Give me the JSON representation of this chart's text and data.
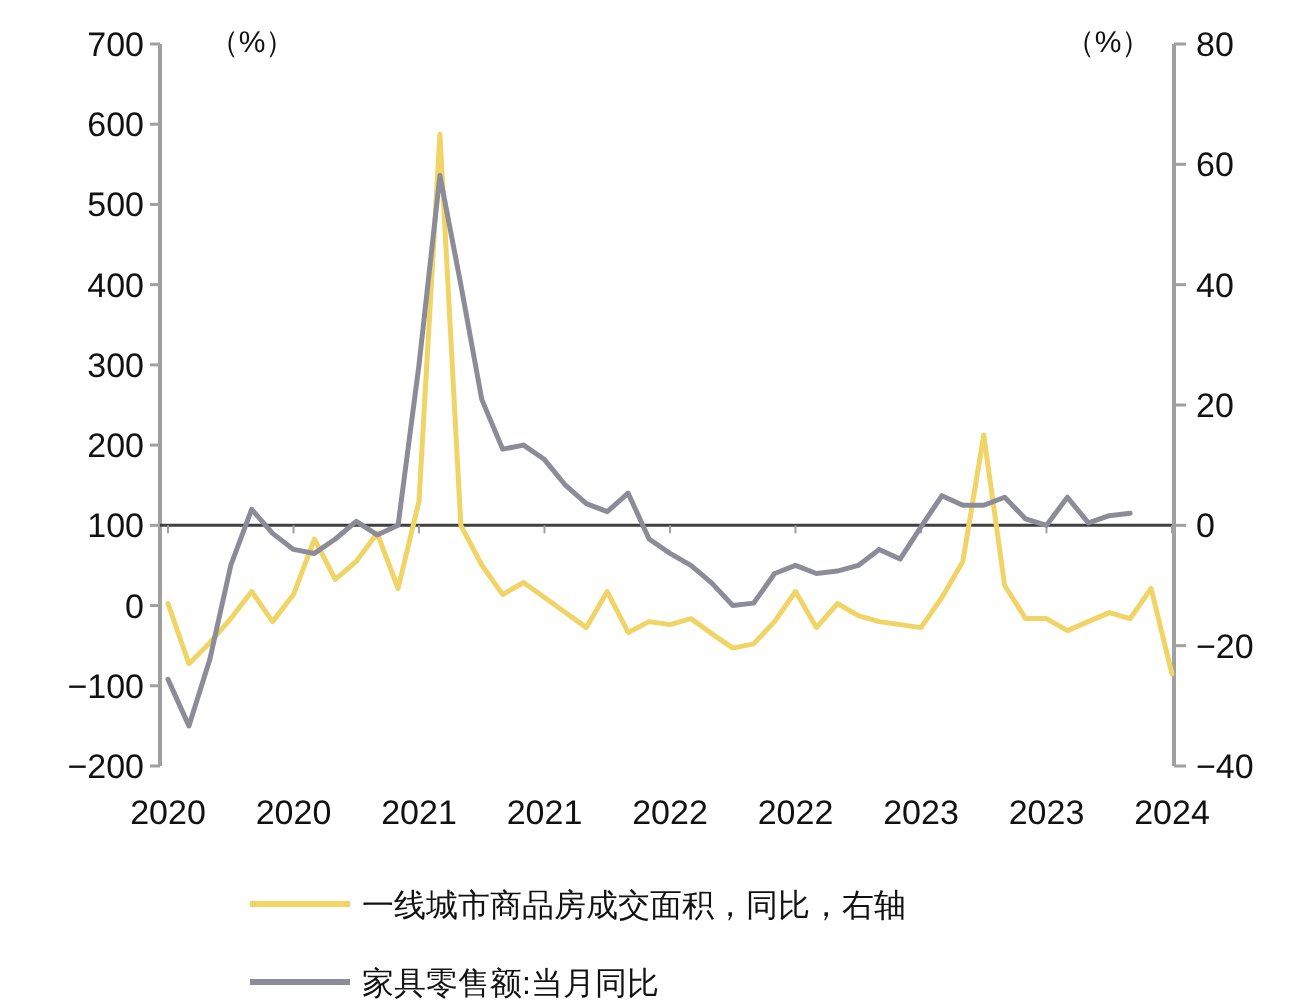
{
  "chart_data": {
    "type": "line",
    "ylabel": "（%）",
    "y2label": "（%）",
    "categories": [
      "2020",
      null,
      null,
      null,
      null,
      null,
      "2020",
      null,
      null,
      null,
      null,
      null,
      "2021",
      null,
      null,
      null,
      null,
      null,
      "2021",
      null,
      null,
      null,
      null,
      null,
      "2022",
      null,
      null,
      null,
      null,
      null,
      "2022",
      null,
      null,
      null,
      null,
      null,
      "2023",
      null,
      null,
      null,
      null,
      null,
      "2023",
      null,
      null,
      null,
      null,
      null,
      "2024"
    ],
    "ylim": [
      -200,
      700
    ],
    "yticks": [
      -200,
      -100,
      0,
      100,
      200,
      300,
      400,
      500,
      600,
      700
    ],
    "y2lim": [
      -40,
      80
    ],
    "y2ticks": [
      -40,
      -20,
      0,
      20,
      40,
      60,
      80
    ],
    "series": [
      {
        "name": "一线城市商品房成交面积，同比，右轴",
        "color": "#f0d466",
        "axis": "y2",
        "values": [
          -13,
          -23,
          -19.5,
          -15.5,
          -11,
          -16,
          -11.5,
          -2.3,
          -9,
          -6,
          -1.3,
          -10.5,
          4,
          65,
          0,
          -6.6,
          -11.5,
          -9.5,
          -12,
          -14.5,
          -17,
          -11,
          -17.8,
          -16,
          -16.5,
          -15.5,
          -18,
          -20.4,
          -19.7,
          -16,
          -11,
          -17,
          -13,
          -15,
          -16,
          -16.5,
          -17,
          -12,
          -6,
          15,
          -10,
          -15.5,
          -15.5,
          -17.5,
          -16,
          -14.5,
          -15.5,
          -10.5,
          -24.7
        ]
      },
      {
        "name": "家具零售额:当月同比",
        "color": "#8c8c99",
        "values": [
          -92,
          -150,
          -67,
          50,
          120,
          90,
          70,
          65,
          83,
          105,
          88,
          100,
          300,
          536,
          400,
          257,
          195,
          200,
          182,
          150,
          127,
          117,
          140,
          83,
          65,
          50,
          28,
          0,
          3,
          40,
          50,
          40,
          43,
          50,
          70,
          58,
          98,
          137,
          125,
          125,
          135,
          108,
          100,
          135,
          103,
          112,
          115,
          null,
          null
        ]
      }
    ],
    "ref_lines": [
      {
        "axis": "y2",
        "value": 0,
        "color": "#404040"
      }
    ],
    "legend": "bottom"
  }
}
